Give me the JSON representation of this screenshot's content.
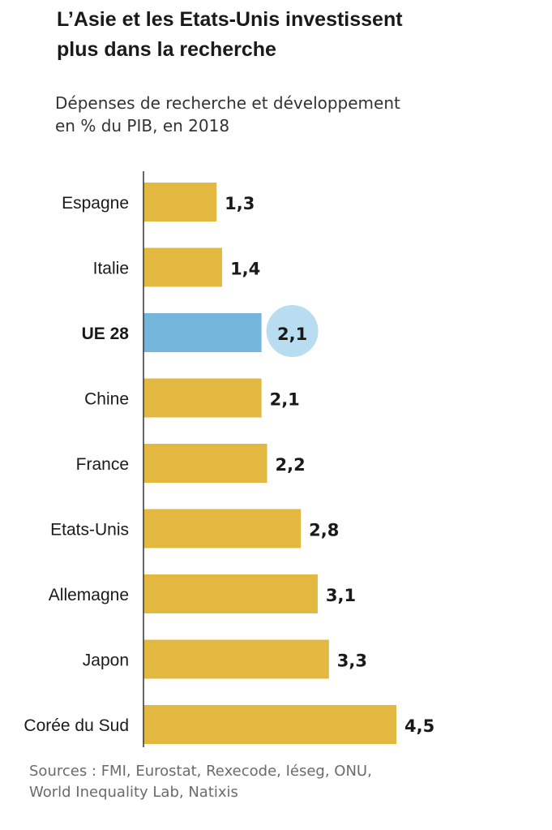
{
  "header": {
    "title_line1": "L’Asie et les Etats-Unis investissent",
    "title_line2": "plus dans la recherche",
    "subtitle_line1": "Dépenses de recherche et développement",
    "subtitle_line2": "en % du PIB, en 2018"
  },
  "footer": {
    "sources_line1": "Sources : FMI, Eurostat, Rexecode, Iéseg, ONU,",
    "sources_line2": "World Inequality Lab, Natixis"
  },
  "colors": {
    "bar": "#e3b840",
    "highlight_bar": "#74b6dc",
    "highlight_circle": "#b8dcf0",
    "axis": "#333333"
  },
  "chart_data": {
    "type": "bar",
    "orientation": "horizontal",
    "title": "L’Asie et les Etats-Unis investissent plus dans la recherche",
    "subtitle": "Dépenses de recherche et développement en % du PIB, en 2018",
    "categories": [
      "Espagne",
      "Italie",
      "UE 28",
      "Chine",
      "France",
      "Etats-Unis",
      "Allemagne",
      "Japon",
      "Corée du Sud"
    ],
    "values": [
      1.3,
      1.4,
      2.1,
      2.1,
      2.2,
      2.8,
      3.1,
      3.3,
      4.5
    ],
    "value_labels": [
      "1,3",
      "1,4",
      "2,1",
      "2,1",
      "2,2",
      "2,8",
      "3,1",
      "3,3",
      "4,5"
    ],
    "highlighted": "UE 28",
    "xlim": [
      0,
      4.5
    ],
    "grid": false,
    "legend": "none"
  }
}
